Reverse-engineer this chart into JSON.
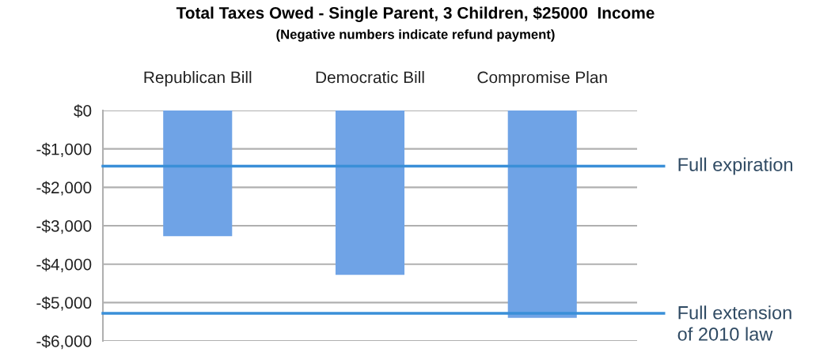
{
  "chart_data": {
    "type": "bar",
    "title": "Total Taxes Owed - Single Parent, 3 Children, $25000  Income",
    "subtitle": "(Negative numbers indicate refund payment)",
    "categories": [
      "Republican Bill",
      "Democratic Bill",
      "Compromise Plan"
    ],
    "values": [
      -3270,
      -4280,
      -5400
    ],
    "color": "#6fa3e6",
    "ylim": [
      -6000,
      0
    ],
    "yticks": [
      {
        "value": 0,
        "label": "$0"
      },
      {
        "value": -1000,
        "label": "-$1,000"
      },
      {
        "value": -2000,
        "label": "-$2,000"
      },
      {
        "value": -3000,
        "label": "-$3,000"
      },
      {
        "value": -4000,
        "label": "-$4,000"
      },
      {
        "value": -5000,
        "label": "-$5,000"
      },
      {
        "value": -6000,
        "label": "-$6,000"
      }
    ],
    "grid": "y",
    "ref_lines": [
      {
        "axis": "y",
        "value": -1450,
        "label": "Full expiration",
        "color": "#3a8fd8"
      },
      {
        "axis": "y",
        "value": -5280,
        "label": "Full extension\nof 2010 law",
        "color": "#3a8fd8"
      }
    ]
  }
}
